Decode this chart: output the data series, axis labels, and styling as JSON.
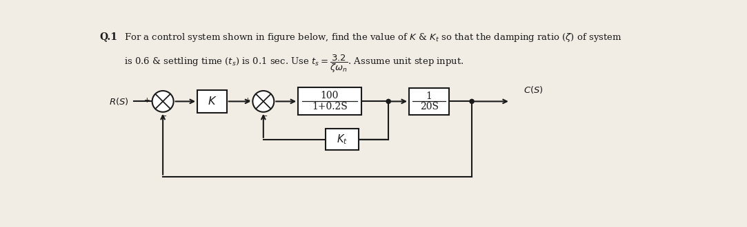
{
  "bg_color": "#f2ede4",
  "line_color": "#1a1a1a",
  "title_line1": "For a control system shown in figure below, find the value of $K$ & $K_t$ so that the damping ratio ($\\zeta$) of system",
  "title_line2": "is 0.6 & settling time ($t_s$) is 0.1 sec. Use $t_s = \\dfrac{3.2}{\\zeta\\omega_n}$. Assume unit step input.",
  "q_label": "Q.1",
  "block_K": "$K$",
  "block_G1_num": "100",
  "block_G1_den": "1+0.2S",
  "block_G2_num": "1",
  "block_G2_den": "20S",
  "block_Kt": "$K_t$",
  "input_label": "$R(S)$",
  "output_label": "$C(S)$",
  "figwidth": 10.83,
  "figheight": 3.3,
  "dpi": 100
}
